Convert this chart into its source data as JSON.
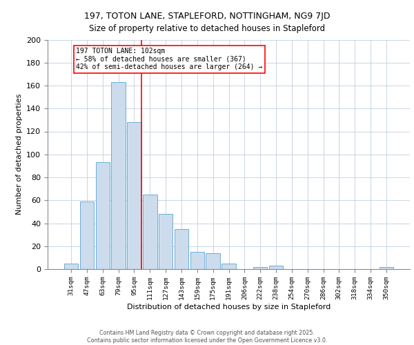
{
  "title1": "197, TOTON LANE, STAPLEFORD, NOTTINGHAM, NG9 7JD",
  "title2": "Size of property relative to detached houses in Stapleford",
  "xlabel": "Distribution of detached houses by size in Stapleford",
  "ylabel": "Number of detached properties",
  "categories": [
    "31sqm",
    "47sqm",
    "63sqm",
    "79sqm",
    "95sqm",
    "111sqm",
    "127sqm",
    "143sqm",
    "159sqm",
    "175sqm",
    "191sqm",
    "206sqm",
    "222sqm",
    "238sqm",
    "254sqm",
    "270sqm",
    "286sqm",
    "302sqm",
    "318sqm",
    "334sqm",
    "350sqm"
  ],
  "values": [
    5,
    59,
    93,
    163,
    128,
    65,
    48,
    35,
    15,
    14,
    5,
    0,
    2,
    3,
    0,
    0,
    0,
    0,
    0,
    0,
    2
  ],
  "bar_color": "#ccdcec",
  "bar_edge_color": "#6baed6",
  "vline_color": "red",
  "vline_x": 4.45,
  "annotation_text": "197 TOTON LANE: 102sqm\n← 58% of detached houses are smaller (367)\n42% of semi-detached houses are larger (264) →",
  "footer_text": "Contains HM Land Registry data © Crown copyright and database right 2025.\nContains public sector information licensed under the Open Government Licence v3.0.",
  "ylim": [
    0,
    200
  ],
  "yticks": [
    0,
    20,
    40,
    60,
    80,
    100,
    120,
    140,
    160,
    180,
    200
  ],
  "background_color": "#ffffff",
  "grid_color": "#c0cfe0"
}
